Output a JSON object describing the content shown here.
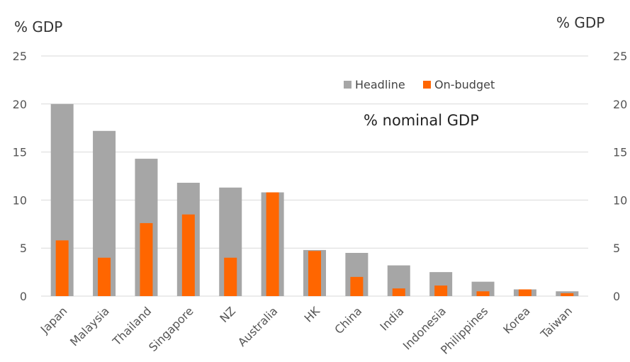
{
  "chart_data": {
    "type": "bar",
    "y_unit_left": "%  GDP",
    "y_unit_right": "%  GDP",
    "annotation": "% nominal GDP",
    "categories": [
      "Japan",
      "Malaysia",
      "Thailand",
      "Singapore",
      "NZ",
      "Australia",
      "HK",
      "China",
      "India",
      "Indonesia",
      "Philippines",
      "Korea",
      "Taiwan"
    ],
    "series": [
      {
        "name": "Headline",
        "color": "#a6a6a6",
        "values": [
          20.0,
          17.2,
          14.3,
          11.8,
          11.3,
          10.8,
          4.8,
          4.5,
          3.2,
          2.5,
          1.5,
          0.7,
          0.5
        ]
      },
      {
        "name": "On-budget",
        "color": "#ff6600",
        "values": [
          5.8,
          4.0,
          7.6,
          8.5,
          4.0,
          10.8,
          4.7,
          2.0,
          0.8,
          1.1,
          0.5,
          0.7,
          0.3
        ]
      }
    ],
    "ylim": [
      0,
      25
    ],
    "yticks": [
      "0",
      "5",
      "10",
      "15",
      "20",
      "25"
    ],
    "grid": true,
    "legend_position": "top-right"
  }
}
